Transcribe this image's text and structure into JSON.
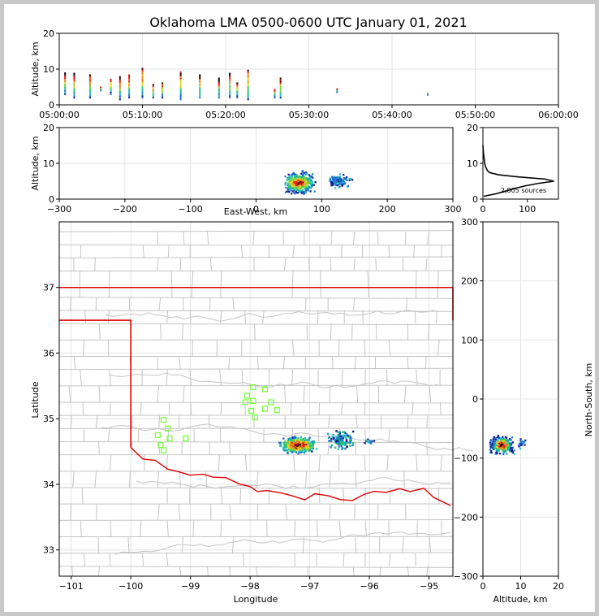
{
  "chart_data": {
    "type": "scatter",
    "title": "Oklahoma LMA 0500-0600 UTC January 01, 2021",
    "panels": {
      "time_altitude": {
        "ylabel": "Altitude, km",
        "ylim": [
          0,
          20
        ],
        "yticks": [
          "0",
          "10",
          "20"
        ],
        "xticks": [
          "05:00:00",
          "05:10:00",
          "05:20:00",
          "05:30:00",
          "05:40:00",
          "05:50:00",
          "06:00:00"
        ],
        "xlim_minutes": [
          0,
          60
        ],
        "source_columns": [
          {
            "t": 0.7,
            "alt_low": 3,
            "alt_high": 9
          },
          {
            "t": 1.8,
            "alt_low": 2,
            "alt_high": 9
          },
          {
            "t": 3.7,
            "alt_low": 2,
            "alt_high": 8.5
          },
          {
            "t": 5.0,
            "alt_low": 4,
            "alt_high": 5
          },
          {
            "t": 6.2,
            "alt_low": 3,
            "alt_high": 7.5
          },
          {
            "t": 7.3,
            "alt_low": 1.5,
            "alt_high": 8
          },
          {
            "t": 8.4,
            "alt_low": 2,
            "alt_high": 8.5
          },
          {
            "t": 10.0,
            "alt_low": 2,
            "alt_high": 10.5
          },
          {
            "t": 11.3,
            "alt_low": 2,
            "alt_high": 6
          },
          {
            "t": 12.4,
            "alt_low": 2,
            "alt_high": 6.5
          },
          {
            "t": 14.6,
            "alt_low": 1.5,
            "alt_high": 9.5
          },
          {
            "t": 16.9,
            "alt_low": 2,
            "alt_high": 8.5
          },
          {
            "t": 19.2,
            "alt_low": 2,
            "alt_high": 7.5
          },
          {
            "t": 20.5,
            "alt_low": 2,
            "alt_high": 9
          },
          {
            "t": 21.4,
            "alt_low": 2,
            "alt_high": 6.5
          },
          {
            "t": 22.7,
            "alt_low": 1.5,
            "alt_high": 10
          },
          {
            "t": 25.9,
            "alt_low": 2,
            "alt_high": 4.5
          },
          {
            "t": 26.6,
            "alt_low": 2,
            "alt_high": 7.5
          },
          {
            "t": 33.4,
            "alt_low": 3.5,
            "alt_high": 4.5
          },
          {
            "t": 44.3,
            "alt_low": 2.8,
            "alt_high": 3.6
          }
        ]
      },
      "east_west_altitude": {
        "ylabel": "Altitude, km",
        "xlabel": "East-West, km",
        "xlim": [
          -300,
          300
        ],
        "ylim": [
          0,
          20
        ],
        "xticks": [
          "−300",
          "−200",
          "−100",
          "0",
          "100",
          "200",
          "300"
        ],
        "yticks": [
          "0",
          "10",
          "20"
        ],
        "clusters": [
          {
            "x_min": 40,
            "x_max": 100,
            "alt_min": 1.5,
            "alt_max": 9,
            "center_x": 65,
            "center_alt": 4.5
          },
          {
            "x_min": 110,
            "x_max": 160,
            "alt_min": 2.5,
            "alt_max": 7,
            "center_x": 125,
            "center_alt": 5
          }
        ]
      },
      "altitude_histogram": {
        "annotation": "2,805 sources",
        "xticks": [
          "0",
          "100"
        ],
        "yticks": [
          "0",
          "10",
          "20"
        ],
        "xlim": [
          0,
          170
        ],
        "ylim": [
          0,
          20
        ],
        "profile": [
          {
            "alt": 0.8,
            "count": 2
          },
          {
            "alt": 1.5,
            "count": 30
          },
          {
            "alt": 2.2,
            "count": 50
          },
          {
            "alt": 3.0,
            "count": 72
          },
          {
            "alt": 3.7,
            "count": 95
          },
          {
            "alt": 4.4,
            "count": 125
          },
          {
            "alt": 5.0,
            "count": 160
          },
          {
            "alt": 5.6,
            "count": 140
          },
          {
            "alt": 6.2,
            "count": 80
          },
          {
            "alt": 6.8,
            "count": 35
          },
          {
            "alt": 7.4,
            "count": 15
          },
          {
            "alt": 8.0,
            "count": 10
          },
          {
            "alt": 9.0,
            "count": 6
          },
          {
            "alt": 10.0,
            "count": 4
          },
          {
            "alt": 11.0,
            "count": 3
          },
          {
            "alt": 13.0,
            "count": 1
          },
          {
            "alt": 15.0,
            "count": 0
          }
        ]
      },
      "plan_view": {
        "xlabel": "Longitude",
        "ylabel": "Latitude",
        "xlim": [
          -101.2,
          -94.6
        ],
        "ylim": [
          32.6,
          38.0
        ],
        "xticks": [
          "−101",
          "−100",
          "−99",
          "−98",
          "−97",
          "−96",
          "−95"
        ],
        "yticks": [
          "33",
          "34",
          "35",
          "36",
          "37"
        ],
        "source_clusters": [
          {
            "lon_min": -97.6,
            "lon_max": -96.8,
            "lat_min": 34.45,
            "lat_max": 34.75
          },
          {
            "lon_min": -96.75,
            "lon_max": -96.2,
            "lat_min": 34.5,
            "lat_max": 34.85
          },
          {
            "lon_min": -96.1,
            "lon_max": -95.9,
            "lat_min": 34.6,
            "lat_max": 34.7
          }
        ],
        "stations": [
          {
            "lon": -97.95,
            "lat": 35.48
          },
          {
            "lon": -97.75,
            "lat": 35.45
          },
          {
            "lon": -98.05,
            "lat": 35.35
          },
          {
            "lon": -97.95,
            "lat": 35.27
          },
          {
            "lon": -98.08,
            "lat": 35.25
          },
          {
            "lon": -97.65,
            "lat": 35.25
          },
          {
            "lon": -97.75,
            "lat": 35.15
          },
          {
            "lon": -97.55,
            "lat": 35.13
          },
          {
            "lon": -97.98,
            "lat": 35.12
          },
          {
            "lon": -97.92,
            "lat": 35.02
          },
          {
            "lon": -99.45,
            "lat": 34.98
          },
          {
            "lon": -99.38,
            "lat": 34.85
          },
          {
            "lon": -99.55,
            "lat": 34.75
          },
          {
            "lon": -99.35,
            "lat": 34.7
          },
          {
            "lon": -99.08,
            "lat": 34.7
          },
          {
            "lon": -99.5,
            "lat": 34.6
          },
          {
            "lon": -99.45,
            "lat": 34.52
          }
        ]
      },
      "north_south_altitude": {
        "xlabel": "Altitude, km",
        "ylabel": "North-South, km",
        "xlim": [
          0,
          20
        ],
        "ylim": [
          -300,
          300
        ],
        "xticks": [
          "0",
          "10",
          "20"
        ],
        "yticks": [
          "300",
          "200",
          "100",
          "0",
          "−100",
          "−200",
          "−300"
        ],
        "clusters": [
          {
            "alt_min": 1,
            "alt_max": 9,
            "y_min": -95,
            "y_max": -55,
            "center_alt": 5,
            "center_y": -78
          },
          {
            "alt_min": 9,
            "alt_max": 13,
            "y_min": -85,
            "y_max": -60,
            "center_alt": 10,
            "center_y": -75
          }
        ]
      }
    },
    "colors": {
      "border_line": "#e00000",
      "county_lines": "#c4c4c4",
      "station_marker": "#7aff3c",
      "grid": "#e4e4e4",
      "palette": [
        "#0a1a8c",
        "#1f6fd0",
        "#1fb8c8",
        "#23c078",
        "#78d040",
        "#e8d020",
        "#f08020",
        "#e01818",
        "#1a0000"
      ]
    }
  }
}
